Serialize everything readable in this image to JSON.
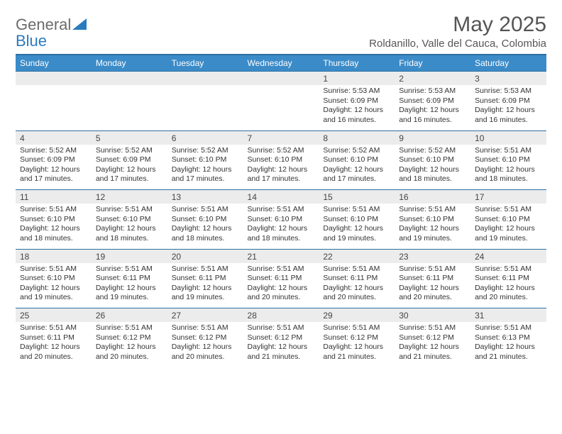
{
  "brand": {
    "part1": "General",
    "part2": "Blue"
  },
  "title": "May 2025",
  "location": "Roldanillo, Valle del Cauca, Colombia",
  "colors": {
    "header_bg": "#3b8bc8",
    "header_border": "#2b6fa3",
    "date_bg": "#ececec",
    "text": "#333333",
    "title_text": "#555555"
  },
  "dayNames": [
    "Sunday",
    "Monday",
    "Tuesday",
    "Wednesday",
    "Thursday",
    "Friday",
    "Saturday"
  ],
  "weeks": [
    {
      "dates": [
        "",
        "",
        "",
        "",
        "1",
        "2",
        "3"
      ],
      "details": [
        "",
        "",
        "",
        "",
        "Sunrise: 5:53 AM\nSunset: 6:09 PM\nDaylight: 12 hours and 16 minutes.",
        "Sunrise: 5:53 AM\nSunset: 6:09 PM\nDaylight: 12 hours and 16 minutes.",
        "Sunrise: 5:53 AM\nSunset: 6:09 PM\nDaylight: 12 hours and 16 minutes."
      ]
    },
    {
      "dates": [
        "4",
        "5",
        "6",
        "7",
        "8",
        "9",
        "10"
      ],
      "details": [
        "Sunrise: 5:52 AM\nSunset: 6:09 PM\nDaylight: 12 hours and 17 minutes.",
        "Sunrise: 5:52 AM\nSunset: 6:09 PM\nDaylight: 12 hours and 17 minutes.",
        "Sunrise: 5:52 AM\nSunset: 6:10 PM\nDaylight: 12 hours and 17 minutes.",
        "Sunrise: 5:52 AM\nSunset: 6:10 PM\nDaylight: 12 hours and 17 minutes.",
        "Sunrise: 5:52 AM\nSunset: 6:10 PM\nDaylight: 12 hours and 17 minutes.",
        "Sunrise: 5:52 AM\nSunset: 6:10 PM\nDaylight: 12 hours and 18 minutes.",
        "Sunrise: 5:51 AM\nSunset: 6:10 PM\nDaylight: 12 hours and 18 minutes."
      ]
    },
    {
      "dates": [
        "11",
        "12",
        "13",
        "14",
        "15",
        "16",
        "17"
      ],
      "details": [
        "Sunrise: 5:51 AM\nSunset: 6:10 PM\nDaylight: 12 hours and 18 minutes.",
        "Sunrise: 5:51 AM\nSunset: 6:10 PM\nDaylight: 12 hours and 18 minutes.",
        "Sunrise: 5:51 AM\nSunset: 6:10 PM\nDaylight: 12 hours and 18 minutes.",
        "Sunrise: 5:51 AM\nSunset: 6:10 PM\nDaylight: 12 hours and 18 minutes.",
        "Sunrise: 5:51 AM\nSunset: 6:10 PM\nDaylight: 12 hours and 19 minutes.",
        "Sunrise: 5:51 AM\nSunset: 6:10 PM\nDaylight: 12 hours and 19 minutes.",
        "Sunrise: 5:51 AM\nSunset: 6:10 PM\nDaylight: 12 hours and 19 minutes."
      ]
    },
    {
      "dates": [
        "18",
        "19",
        "20",
        "21",
        "22",
        "23",
        "24"
      ],
      "details": [
        "Sunrise: 5:51 AM\nSunset: 6:10 PM\nDaylight: 12 hours and 19 minutes.",
        "Sunrise: 5:51 AM\nSunset: 6:11 PM\nDaylight: 12 hours and 19 minutes.",
        "Sunrise: 5:51 AM\nSunset: 6:11 PM\nDaylight: 12 hours and 19 minutes.",
        "Sunrise: 5:51 AM\nSunset: 6:11 PM\nDaylight: 12 hours and 20 minutes.",
        "Sunrise: 5:51 AM\nSunset: 6:11 PM\nDaylight: 12 hours and 20 minutes.",
        "Sunrise: 5:51 AM\nSunset: 6:11 PM\nDaylight: 12 hours and 20 minutes.",
        "Sunrise: 5:51 AM\nSunset: 6:11 PM\nDaylight: 12 hours and 20 minutes."
      ]
    },
    {
      "dates": [
        "25",
        "26",
        "27",
        "28",
        "29",
        "30",
        "31"
      ],
      "details": [
        "Sunrise: 5:51 AM\nSunset: 6:11 PM\nDaylight: 12 hours and 20 minutes.",
        "Sunrise: 5:51 AM\nSunset: 6:12 PM\nDaylight: 12 hours and 20 minutes.",
        "Sunrise: 5:51 AM\nSunset: 6:12 PM\nDaylight: 12 hours and 20 minutes.",
        "Sunrise: 5:51 AM\nSunset: 6:12 PM\nDaylight: 12 hours and 21 minutes.",
        "Sunrise: 5:51 AM\nSunset: 6:12 PM\nDaylight: 12 hours and 21 minutes.",
        "Sunrise: 5:51 AM\nSunset: 6:12 PM\nDaylight: 12 hours and 21 minutes.",
        "Sunrise: 5:51 AM\nSunset: 6:13 PM\nDaylight: 12 hours and 21 minutes."
      ]
    }
  ]
}
